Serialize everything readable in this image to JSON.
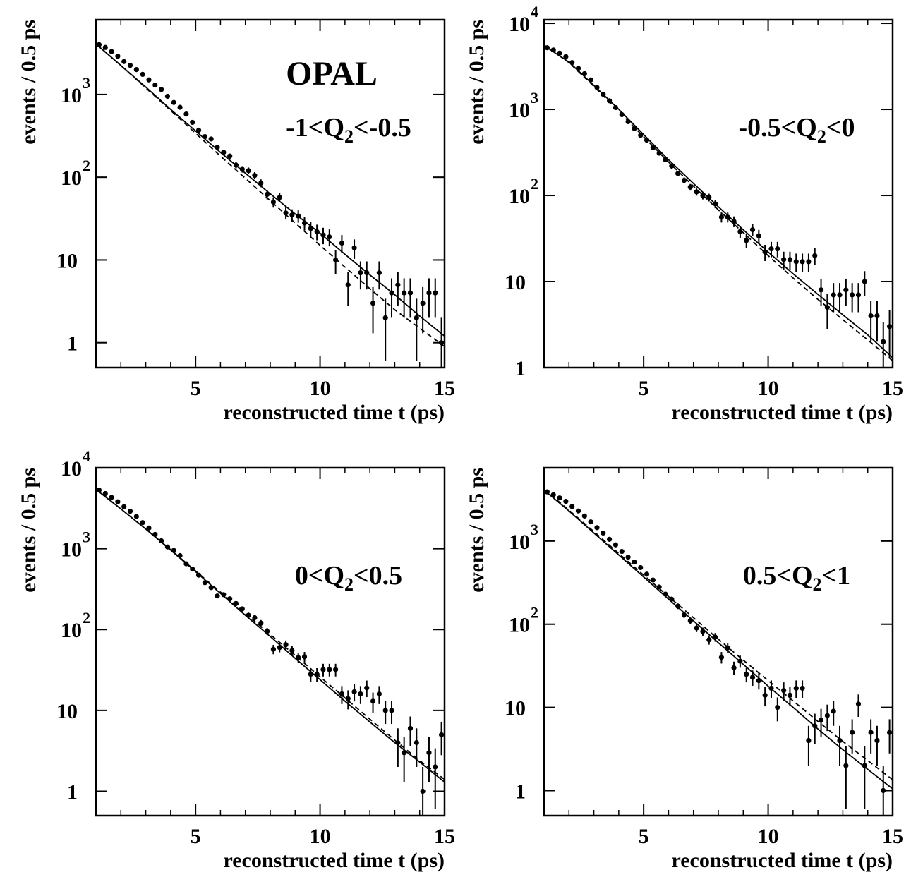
{
  "chart_data": [
    {
      "type": "scatter",
      "annotation": "OPAL",
      "label_parts": [
        "-1<Q",
        "2",
        "<-0.5"
      ],
      "x_label": "reconstructed time t (ps)",
      "y_label": "events / 0.5 ps",
      "xlim": [
        1,
        15
      ],
      "xticks": [
        5,
        10,
        15
      ],
      "xminor": [
        2,
        3,
        4,
        6,
        7,
        8,
        9,
        11,
        12,
        13,
        14
      ],
      "ylim": [
        0.5,
        8000
      ],
      "log_y": true,
      "yticks": [
        1,
        10,
        {
          "value": 100,
          "label": "10",
          "exponent": "2"
        },
        {
          "value": 1000,
          "label": "10",
          "exponent": "3"
        }
      ],
      "color": "#000000",
      "x": [
        1.125,
        1.375,
        1.625,
        1.875,
        2.125,
        2.375,
        2.625,
        2.875,
        3.125,
        3.375,
        3.625,
        3.875,
        4.125,
        4.375,
        4.625,
        4.875,
        5.125,
        5.375,
        5.625,
        5.875,
        6.125,
        6.375,
        6.625,
        6.875,
        7.125,
        7.375,
        7.625,
        7.875,
        8.125,
        8.375,
        8.625,
        8.875,
        9.125,
        9.375,
        9.625,
        9.875,
        10.125,
        10.375,
        10.625,
        10.875,
        11.125,
        11.375,
        11.625,
        11.875,
        12.125,
        12.375,
        12.625,
        12.875,
        13.125,
        13.375,
        13.625,
        13.875,
        14.125,
        14.375,
        14.625,
        14.875
      ],
      "values": [
        4000,
        3700,
        3300,
        2900,
        2500,
        2250,
        2000,
        1750,
        1500,
        1300,
        1150,
        950,
        800,
        700,
        580,
        460,
        370,
        310,
        290,
        230,
        200,
        180,
        140,
        125,
        120,
        105,
        85,
        62,
        50,
        57,
        37,
        35,
        34,
        28,
        24,
        22,
        20,
        19,
        10,
        16,
        5,
        14,
        7,
        7,
        3,
        7,
        2,
        4,
        5,
        4,
        4,
        2,
        3,
        4,
        4,
        1
      ],
      "errors": [
        63,
        61,
        57,
        54,
        50,
        47,
        45,
        42,
        39,
        36,
        34,
        31,
        28,
        26,
        24,
        21,
        19,
        18,
        17,
        15,
        14,
        13,
        12,
        11,
        11,
        10,
        9.2,
        7.9,
        7.1,
        7.5,
        6.1,
        5.9,
        5.8,
        5.3,
        4.9,
        4.7,
        4.5,
        4.4,
        3.2,
        4,
        2.2,
        3.7,
        2.6,
        2.6,
        1.7,
        2.6,
        1.4,
        2,
        2.2,
        2,
        2,
        1.4,
        1.7,
        2,
        2,
        1
      ],
      "fits": [
        {
          "style": "solid",
          "x": [
            1,
            2,
            3,
            4,
            5,
            6,
            7,
            8,
            9,
            10,
            11,
            12,
            13,
            14,
            15
          ],
          "values": [
            4070,
            2240,
            1230,
            660,
            363,
            200,
            112,
            63,
            36,
            21,
            11.7,
            6.6,
            3.8,
            2.1,
            1.2
          ]
        },
        {
          "style": "dashed",
          "x": [
            1,
            2,
            3,
            4,
            5,
            6,
            7,
            8,
            9,
            10,
            11,
            12,
            13,
            14,
            15
          ],
          "values": [
            4100,
            2240,
            1200,
            640,
            340,
            180,
            97,
            52,
            28,
            15,
            8.2,
            4.5,
            2.5,
            1.5,
            0.9
          ]
        }
      ]
    },
    {
      "type": "scatter",
      "label_parts": [
        "-0.5<Q",
        "2",
        "<0"
      ],
      "x_label": "reconstructed time t (ps)",
      "y_label": "events / 0.5 ps",
      "xlim": [
        1,
        15
      ],
      "xticks": [
        5,
        10,
        15
      ],
      "xminor": [
        2,
        3,
        4,
        6,
        7,
        8,
        9,
        11,
        12,
        13,
        14
      ],
      "ylim": [
        1,
        11000
      ],
      "log_y": true,
      "yticks": [
        1,
        10,
        {
          "value": 100,
          "label": "10",
          "exponent": "2"
        },
        {
          "value": 1000,
          "label": "10",
          "exponent": "3"
        },
        {
          "value": 10000,
          "label": "10",
          "exponent": "4"
        }
      ],
      "color": "#000000",
      "x": [
        1.125,
        1.375,
        1.625,
        1.875,
        2.125,
        2.375,
        2.625,
        2.875,
        3.125,
        3.375,
        3.625,
        3.875,
        4.125,
        4.375,
        4.625,
        4.875,
        5.125,
        5.375,
        5.625,
        5.875,
        6.125,
        6.375,
        6.625,
        6.875,
        7.125,
        7.375,
        7.625,
        7.875,
        8.125,
        8.375,
        8.625,
        8.875,
        9.125,
        9.375,
        9.625,
        9.875,
        10.125,
        10.375,
        10.625,
        10.875,
        11.125,
        11.375,
        11.625,
        11.875,
        12.125,
        12.375,
        12.625,
        12.875,
        13.125,
        13.375,
        13.625,
        13.875,
        14.125,
        14.375,
        14.625,
        14.875
      ],
      "values": [
        5200,
        4900,
        4500,
        4100,
        3500,
        3000,
        2600,
        2200,
        1800,
        1500,
        1260,
        1050,
        870,
        720,
        600,
        500,
        440,
        360,
        310,
        260,
        220,
        180,
        150,
        125,
        110,
        100,
        95,
        80,
        56,
        56,
        50,
        38,
        30,
        40,
        34,
        22,
        24,
        24,
        18,
        18,
        17,
        17,
        17,
        20,
        8,
        5,
        7,
        7,
        8,
        7,
        7,
        10,
        4,
        4,
        2,
        3
      ],
      "errors": [
        72,
        70,
        67,
        64,
        59,
        55,
        51,
        47,
        42,
        39,
        35,
        32,
        29,
        27,
        24,
        22,
        21,
        19,
        18,
        16,
        15,
        13,
        12,
        11,
        10.5,
        10,
        9.7,
        8.9,
        7.5,
        7.5,
        7.1,
        6.2,
        5.5,
        6.3,
        5.8,
        4.7,
        4.9,
        4.9,
        4.2,
        4.2,
        4.1,
        4.1,
        4.1,
        4.5,
        2.8,
        2.2,
        2.6,
        2.6,
        2.8,
        2.6,
        2.6,
        3.2,
        2,
        2,
        1.4,
        1.7
      ],
      "fits": [
        {
          "style": "solid",
          "x": [
            1,
            2,
            3,
            4,
            5,
            6,
            7,
            8,
            9,
            10,
            11,
            12,
            13,
            14,
            15
          ],
          "values": [
            5500,
            3550,
            1900,
            1000,
            510,
            260,
            138,
            74,
            40,
            22,
            12.3,
            7.1,
            4.1,
            2.4,
            1.3
          ]
        },
        {
          "style": "dashed",
          "x": [
            1,
            2,
            3,
            4,
            5,
            6,
            7,
            8,
            9,
            10,
            11,
            12,
            13,
            14,
            15
          ],
          "values": [
            5600,
            3500,
            1850,
            950,
            480,
            245,
            128,
            68,
            37,
            20,
            11,
            6.2,
            3.6,
            2.1,
            1.2
          ]
        }
      ]
    },
    {
      "type": "scatter",
      "label_parts": [
        "0<Q",
        "2",
        "<0.5"
      ],
      "x_label": "reconstructed time t (ps)",
      "y_label": "events / 0.5 ps",
      "xlim": [
        1,
        15
      ],
      "xticks": [
        5,
        10,
        15
      ],
      "xminor": [
        2,
        3,
        4,
        6,
        7,
        8,
        9,
        11,
        12,
        13,
        14
      ],
      "ylim": [
        0.5,
        10000
      ],
      "log_y": true,
      "yticks": [
        1,
        10,
        {
          "value": 100,
          "label": "10",
          "exponent": "2"
        },
        {
          "value": 1000,
          "label": "10",
          "exponent": "3"
        },
        {
          "value": 10000,
          "label": "10",
          "exponent": "4"
        }
      ],
      "color": "#000000",
      "x": [
        1.125,
        1.375,
        1.625,
        1.875,
        2.125,
        2.375,
        2.625,
        2.875,
        3.125,
        3.375,
        3.625,
        3.875,
        4.125,
        4.375,
        4.625,
        4.875,
        5.125,
        5.375,
        5.625,
        5.875,
        6.125,
        6.375,
        6.625,
        6.875,
        7.125,
        7.375,
        7.625,
        7.875,
        8.125,
        8.375,
        8.625,
        8.875,
        9.125,
        9.375,
        9.625,
        9.875,
        10.125,
        10.375,
        10.625,
        10.875,
        11.125,
        11.375,
        11.625,
        11.875,
        12.125,
        12.375,
        12.625,
        12.875,
        13.125,
        13.375,
        13.625,
        13.875,
        14.125,
        14.375,
        14.625,
        14.875
      ],
      "values": [
        5300,
        4800,
        4300,
        3800,
        3300,
        2900,
        2500,
        2100,
        1800,
        1500,
        1250,
        1050,
        950,
        820,
        650,
        560,
        470,
        380,
        330,
        260,
        270,
        240,
        210,
        180,
        150,
        140,
        120,
        95,
        57,
        60,
        65,
        55,
        45,
        46,
        28,
        28,
        32,
        32,
        32,
        16,
        14,
        17,
        16,
        19,
        13,
        16,
        10,
        10,
        4,
        3,
        6,
        4,
        1,
        3,
        2,
        5
      ],
      "errors": [
        73,
        69,
        66,
        62,
        57,
        54,
        50,
        46,
        42,
        39,
        35,
        32,
        31,
        29,
        25,
        24,
        22,
        19,
        18,
        16,
        16,
        15,
        14,
        13,
        12,
        12,
        11,
        9.7,
        7.5,
        7.7,
        8.1,
        7.4,
        6.7,
        6.8,
        5.3,
        5.3,
        5.7,
        5.7,
        5.7,
        4,
        3.7,
        4.1,
        4,
        4.4,
        3.6,
        4,
        3.2,
        3.2,
        2,
        1.7,
        2.4,
        2,
        1,
        1.7,
        1.4,
        2.2
      ],
      "fits": [
        {
          "style": "solid",
          "x": [
            1,
            2,
            3,
            4,
            5,
            6,
            7,
            8,
            9,
            10,
            11,
            12,
            13,
            14,
            15
          ],
          "values": [
            5400,
            3100,
            1750,
            960,
            520,
            280,
            150,
            82,
            44,
            24,
            13,
            7.2,
            4.0,
            2.3,
            1.3
          ]
        },
        {
          "style": "dashed",
          "x": [
            1,
            2,
            3,
            4,
            5,
            6,
            7,
            8,
            9,
            10,
            11,
            12,
            13,
            14,
            15
          ],
          "values": [
            5500,
            3100,
            1750,
            970,
            530,
            290,
            158,
            87,
            48,
            26,
            14.3,
            7.8,
            4.3,
            2.4,
            1.4
          ]
        }
      ]
    },
    {
      "type": "scatter",
      "label_parts": [
        "0.5<Q",
        "2",
        "<1"
      ],
      "x_label": "reconstructed time t (ps)",
      "y_label": "events / 0.5 ps",
      "xlim": [
        1,
        15
      ],
      "xticks": [
        5,
        10,
        15
      ],
      "xminor": [
        2,
        3,
        4,
        6,
        7,
        8,
        9,
        11,
        12,
        13,
        14
      ],
      "ylim": [
        0.5,
        7600
      ],
      "log_y": true,
      "yticks": [
        1,
        10,
        {
          "value": 100,
          "label": "10",
          "exponent": "2"
        },
        {
          "value": 1000,
          "label": "10",
          "exponent": "3"
        }
      ],
      "color": "#000000",
      "x": [
        1.125,
        1.375,
        1.625,
        1.875,
        2.125,
        2.375,
        2.625,
        2.875,
        3.125,
        3.375,
        3.625,
        3.875,
        4.125,
        4.375,
        4.625,
        4.875,
        5.125,
        5.375,
        5.625,
        5.875,
        6.125,
        6.375,
        6.625,
        6.875,
        7.125,
        7.375,
        7.625,
        7.875,
        8.125,
        8.375,
        8.625,
        8.875,
        9.125,
        9.375,
        9.625,
        9.875,
        10.125,
        10.375,
        10.625,
        10.875,
        11.125,
        11.375,
        11.625,
        11.875,
        12.125,
        12.375,
        12.625,
        12.875,
        13.125,
        13.375,
        13.625,
        13.875,
        14.125,
        14.375,
        14.625,
        14.875
      ],
      "values": [
        3900,
        3600,
        3300,
        3000,
        2600,
        2300,
        2000,
        1700,
        1450,
        1250,
        1050,
        900,
        750,
        640,
        560,
        480,
        400,
        340,
        280,
        230,
        200,
        165,
        130,
        110,
        90,
        82,
        65,
        70,
        40,
        52,
        30,
        36,
        25,
        23,
        21,
        14,
        17,
        10,
        16,
        14,
        17,
        17,
        4,
        6,
        7,
        8,
        9,
        4,
        2,
        5,
        11,
        2,
        5,
        4,
        1,
        5
      ],
      "errors": [
        62,
        60,
        57,
        55,
        51,
        48,
        45,
        41,
        38,
        35,
        32,
        30,
        27,
        25,
        24,
        22,
        20,
        18,
        17,
        15,
        14,
        13,
        11,
        10.5,
        9.5,
        9.1,
        8.1,
        8.4,
        6.3,
        7.2,
        5.5,
        6,
        5,
        4.8,
        4.6,
        3.7,
        4.1,
        3.2,
        4,
        3.7,
        4.1,
        4.1,
        2,
        2.4,
        2.6,
        2.8,
        3,
        2,
        1.4,
        2.2,
        3.3,
        1.4,
        2.2,
        2,
        1,
        2.2
      ],
      "fits": [
        {
          "style": "solid",
          "x": [
            1,
            2,
            3,
            4,
            5,
            6,
            7,
            8,
            9,
            10,
            11,
            12,
            13,
            14,
            15
          ],
          "values": [
            4100,
            2300,
            1250,
            680,
            370,
            200,
            110,
            60,
            33,
            18,
            10,
            5.5,
            3.1,
            1.8,
            1.05
          ]
        },
        {
          "style": "dashed",
          "x": [
            1,
            2,
            3,
            4,
            5,
            6,
            7,
            8,
            9,
            10,
            11,
            12,
            13,
            14,
            15
          ],
          "values": [
            4200,
            2350,
            1300,
            710,
            390,
            215,
            120,
            66,
            37,
            21,
            12,
            6.8,
            3.9,
            2.3,
            1.35
          ]
        }
      ]
    }
  ]
}
